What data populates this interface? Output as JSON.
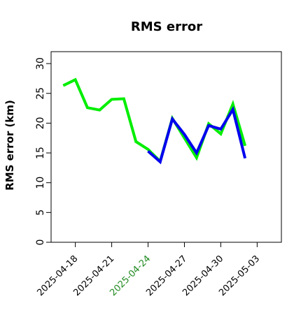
{
  "chart_data": {
    "type": "line",
    "title": "RMS error",
    "xlabel": "",
    "ylabel": "RMS error (km)",
    "ylim": [
      0,
      32
    ],
    "yticks": [
      0,
      5,
      10,
      15,
      20,
      25,
      30
    ],
    "xlim": [
      "2025-04-16",
      "2025-05-05"
    ],
    "xticks": [
      "2025-04-18",
      "2025-04-21",
      "2025-04-24",
      "2025-04-27",
      "2025-04-30",
      "2025-05-03"
    ],
    "highlight_tick": "2025-04-24",
    "grid": false,
    "legend": "none",
    "colors": {
      "green_series": "#00ee00",
      "blue_series": "#0000ee",
      "highlight_tick": "#228b22",
      "axis": "#000000"
    },
    "series": [
      {
        "color_key": "green_series",
        "x": [
          "2025-04-17",
          "2025-04-18",
          "2025-04-19",
          "2025-04-20",
          "2025-04-21",
          "2025-04-22",
          "2025-04-23",
          "2025-04-24",
          "2025-04-25",
          "2025-04-26",
          "2025-04-27",
          "2025-04-28",
          "2025-04-29",
          "2025-04-30",
          "2025-05-01",
          "2025-05-02"
        ],
        "values": [
          26.3,
          27.3,
          22.6,
          22.2,
          24.0,
          24.1,
          16.9,
          15.6,
          13.6,
          20.8,
          17.5,
          14.2,
          19.9,
          18.2,
          23.2,
          16.2
        ]
      },
      {
        "color_key": "blue_series",
        "x": [
          "2025-04-24",
          "2025-04-25",
          "2025-04-26",
          "2025-04-27",
          "2025-04-28",
          "2025-04-29",
          "2025-04-30",
          "2025-05-01",
          "2025-05-02"
        ],
        "values": [
          15.3,
          13.5,
          20.7,
          18.1,
          15.0,
          19.6,
          19.0,
          22.3,
          14.1
        ]
      }
    ]
  }
}
